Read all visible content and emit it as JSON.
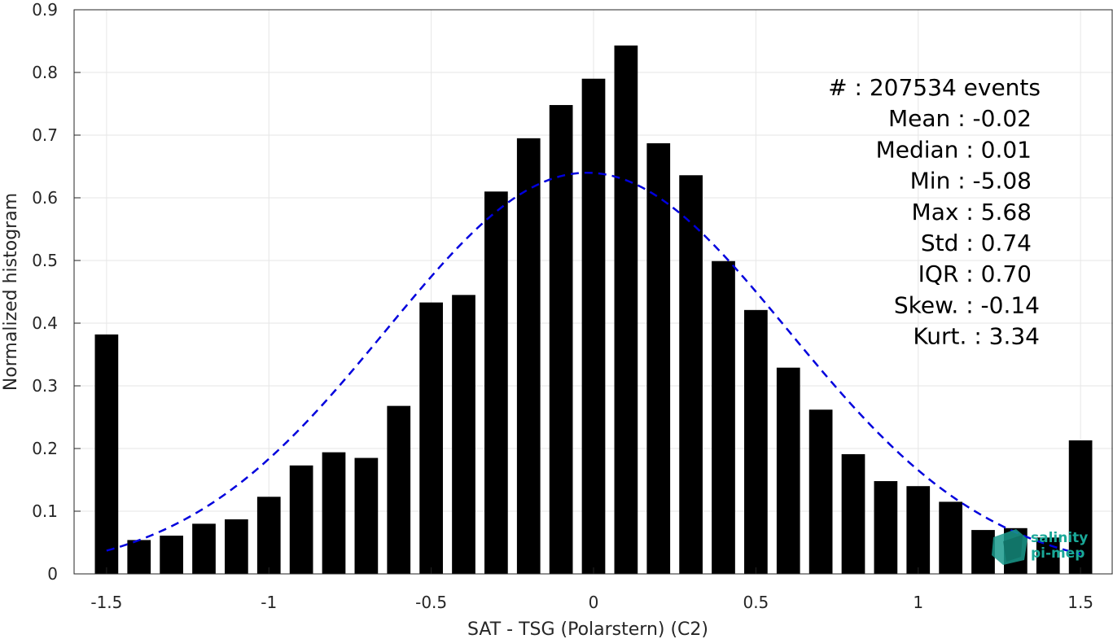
{
  "chart_data": {
    "type": "bar",
    "title": "",
    "xlabel": "SAT - TSG (Polarstern) (C2)",
    "ylabel": "Normalized histogram",
    "xlim": [
      -1.6,
      1.6
    ],
    "ylim": [
      0,
      0.9
    ],
    "xticks": [
      "-1.5",
      "-1",
      "-0.5",
      "0",
      "0.5",
      "1",
      "1.5"
    ],
    "xtick_values": [
      -1.5,
      -1,
      -0.5,
      0,
      0.5,
      1,
      1.5
    ],
    "yticks": [
      "0",
      "0.1",
      "0.2",
      "0.3",
      "0.4",
      "0.5",
      "0.6",
      "0.7",
      "0.8",
      "0.9"
    ],
    "ytick_values": [
      0,
      0.1,
      0.2,
      0.3,
      0.4,
      0.5,
      0.6,
      0.7,
      0.8,
      0.9
    ],
    "grid": true,
    "bar_color": "#000000",
    "bins": [
      -1.5,
      -1.4,
      -1.3,
      -1.2,
      -1.1,
      -1.0,
      -0.9,
      -0.8,
      -0.7,
      -0.6,
      -0.5,
      -0.4,
      -0.3,
      -0.2,
      -0.1,
      0.0,
      0.1,
      0.2,
      0.3,
      0.4,
      0.5,
      0.6,
      0.7,
      0.8,
      0.9,
      1.0,
      1.1,
      1.2,
      1.3,
      1.4,
      1.5
    ],
    "values": [
      0.382,
      0.054,
      0.061,
      0.08,
      0.087,
      0.123,
      0.173,
      0.194,
      0.185,
      0.268,
      0.433,
      0.445,
      0.61,
      0.695,
      0.748,
      0.79,
      0.843,
      0.687,
      0.636,
      0.499,
      0.421,
      0.329,
      0.262,
      0.191,
      0.148,
      0.14,
      0.115,
      0.07,
      0.073,
      0.058,
      0.213
    ],
    "fit_curve": {
      "type": "normal",
      "style": "dashed",
      "color": "#0000dd",
      "mean": -0.02,
      "std": 0.62,
      "peak": 0.64,
      "x_range": [
        -1.5,
        1.5
      ]
    },
    "annotations": [
      "#  : 207534 events",
      "Mean : -0.02",
      "Median : 0.01",
      "Min : -5.08",
      "Max : 5.68",
      "Std : 0.74",
      "IQR : 0.70",
      "Skew. : -0.14",
      "Kurt. : 3.34"
    ]
  },
  "logo": {
    "line1": "salinity",
    "line2": "pi-mep",
    "color": "#1aa898"
  }
}
